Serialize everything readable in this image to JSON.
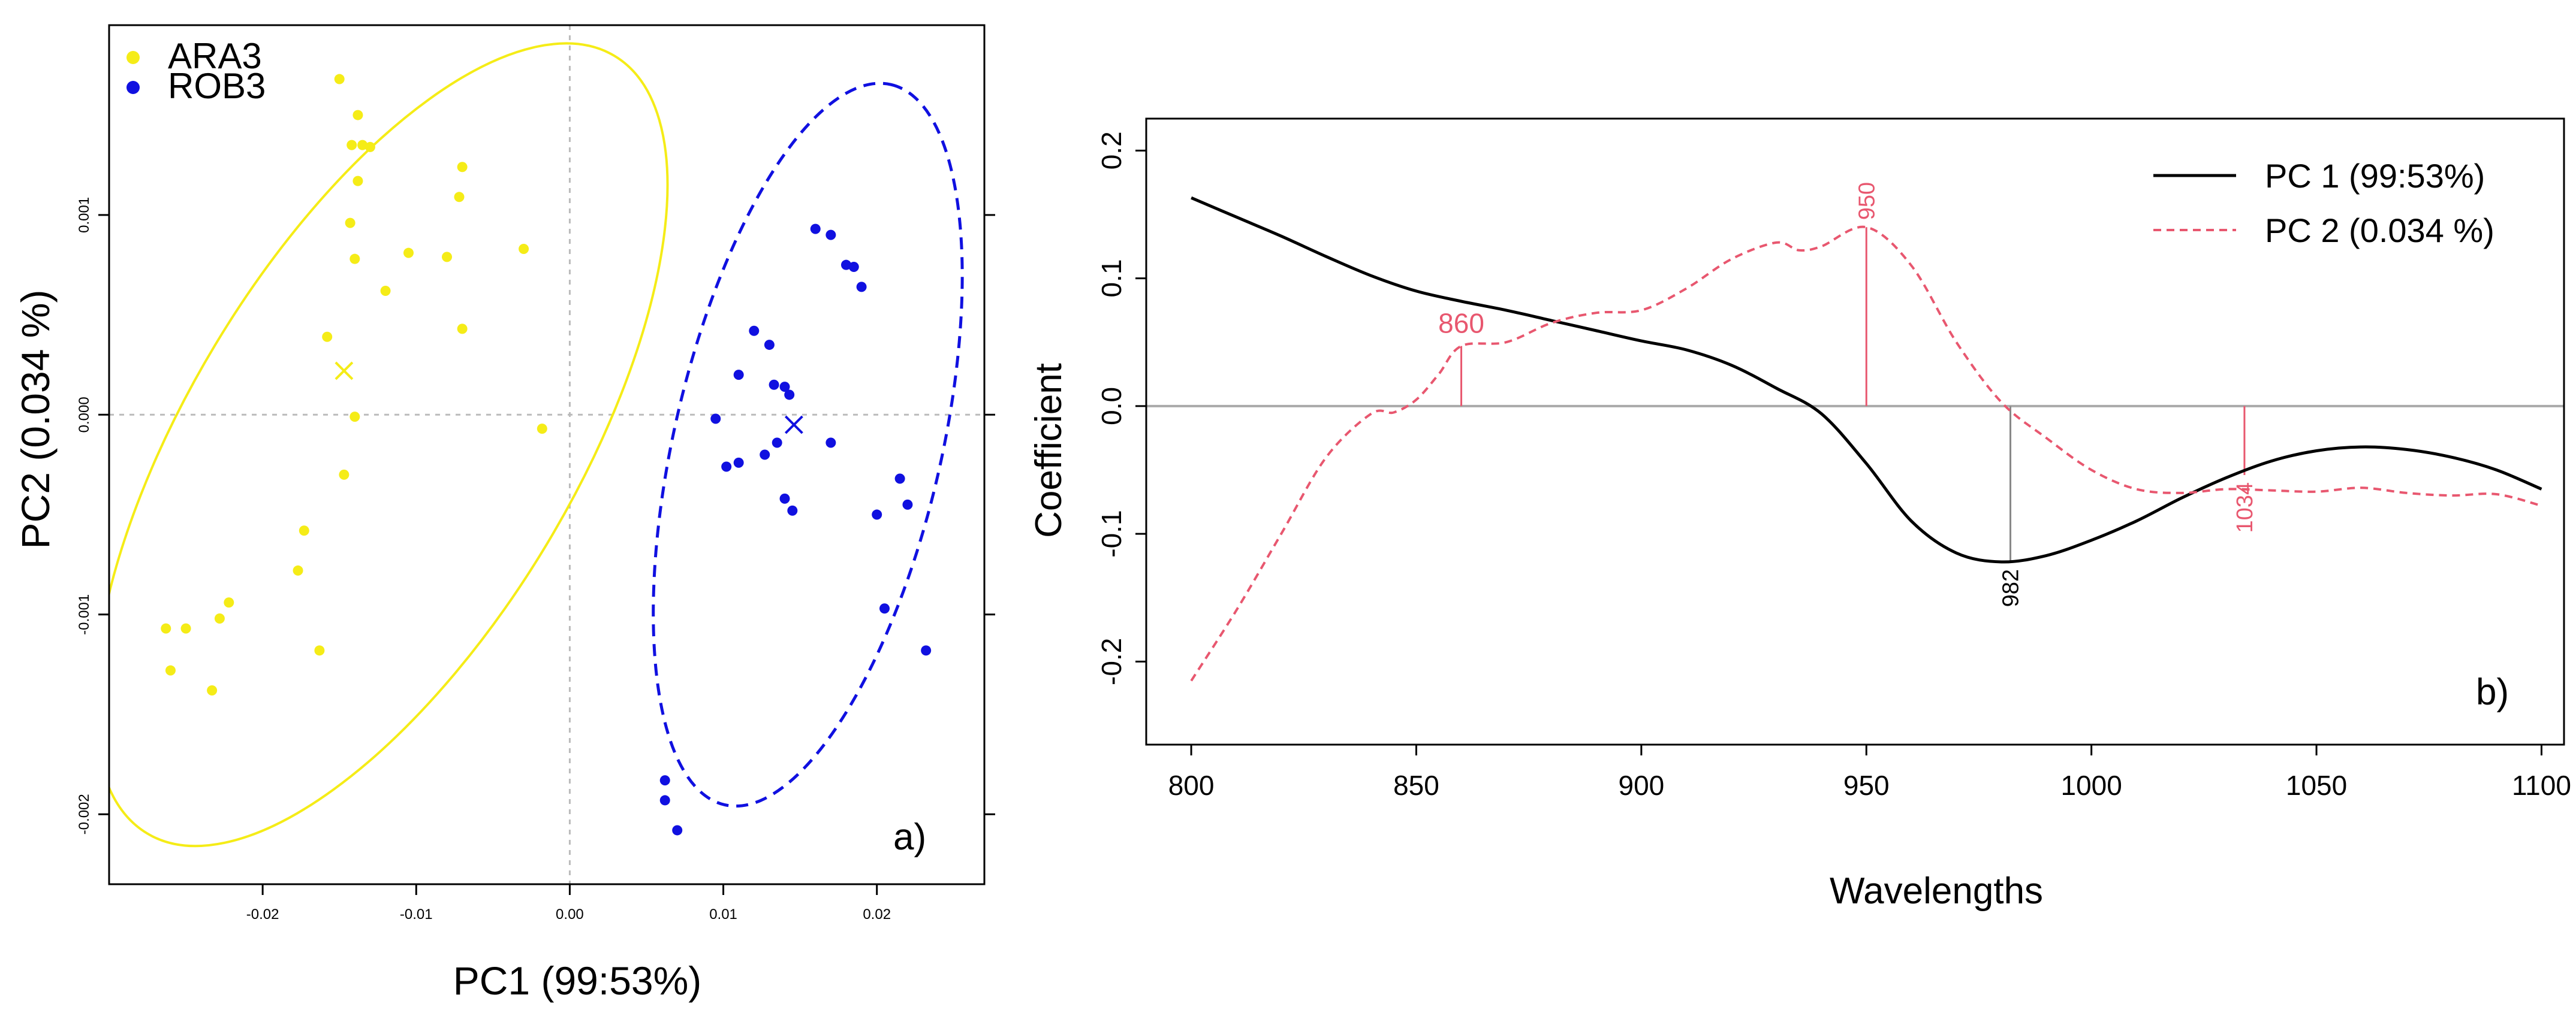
{
  "chart_data": [
    {
      "type": "scatter",
      "panel_label": "a)",
      "xlabel": "PC1 (99:53%)",
      "ylabel": "PC2 (0.034 %)",
      "xlim": [
        -0.03,
        0.027
      ],
      "ylim": [
        -0.00235,
        0.00195
      ],
      "xticks": [
        -0.02,
        -0.01,
        0.0,
        0.01,
        0.02
      ],
      "xtick_labels": [
        "-0.02",
        "-0.01",
        "0.00",
        "0.01",
        "0.02"
      ],
      "yticks": [
        -0.002,
        -0.001,
        0.0,
        0.001
      ],
      "ytick_labels": [
        "-0.002",
        "-0.001",
        "0.000",
        "0.001"
      ],
      "reference_lines": {
        "x": 0,
        "y": 0,
        "style": "dotted",
        "color": "#bbbbbb"
      },
      "legend": {
        "position": "top-left",
        "entries": [
          "ARA3",
          "ROB3"
        ]
      },
      "series": [
        {
          "name": "ARA3",
          "color": "#f5ec17",
          "centroid": [
            -0.0147,
            0.00022
          ],
          "ellipse": {
            "center": [
              -0.0123,
              -0.00015
            ],
            "radii_axis_units": [
              0.0126,
              0.00227
            ],
            "rotation_deg": -59,
            "style": "solid"
          },
          "x": [
            -0.015,
            -0.0138,
            -0.0135,
            -0.0142,
            -0.013,
            -0.007,
            -0.0138,
            -0.0143,
            -0.0072,
            -0.0105,
            -0.008,
            -0.003,
            -0.014,
            -0.012,
            -0.007,
            -0.0158,
            -0.014,
            -0.0018,
            -0.0147,
            -0.0173,
            -0.0177,
            -0.0222,
            -0.0263,
            -0.025,
            -0.0228,
            -0.0163,
            -0.026,
            -0.0233
          ],
          "y": [
            0.00168,
            0.0015,
            0.00135,
            0.00135,
            0.00134,
            0.00124,
            0.00117,
            0.00096,
            0.00109,
            0.00081,
            0.00079,
            0.00083,
            0.00078,
            0.00062,
            0.00043,
            0.00039,
            -1e-05,
            -7e-05,
            -0.0003,
            -0.00058,
            -0.00078,
            -0.00094,
            -0.00107,
            -0.00107,
            -0.00102,
            -0.00118,
            -0.00128,
            -0.00138
          ]
        },
        {
          "name": "ROB3",
          "color": "#1010e0",
          "centroid": [
            0.0146,
            -5e-05
          ],
          "ellipse": {
            "center": [
              0.0155,
              -0.00015
            ],
            "radii_axis_units": [
              0.0087,
              0.00185
            ],
            "rotation_deg": -77,
            "style": "dashed"
          },
          "x": [
            0.016,
            0.017,
            0.018,
            0.0185,
            0.019,
            0.012,
            0.013,
            0.011,
            0.0133,
            0.0143,
            0.014,
            0.0095,
            0.0135,
            0.017,
            0.0127,
            0.011,
            0.0102,
            0.0215,
            0.014,
            0.0145,
            0.022,
            0.02,
            0.0205,
            0.0232,
            0.0062,
            0.0062,
            0.007
          ],
          "y": [
            0.00093,
            0.0009,
            0.00075,
            0.00074,
            0.00064,
            0.00042,
            0.00035,
            0.0002,
            0.00015,
            0.0001,
            0.00014,
            -2e-05,
            -0.00014,
            -0.00014,
            -0.0002,
            -0.00024,
            -0.00026,
            -0.00032,
            -0.00042,
            -0.00048,
            -0.00045,
            -0.0005,
            -0.00097,
            -0.00118,
            -0.00183,
            -0.00193,
            -0.00208
          ]
        }
      ]
    },
    {
      "type": "line",
      "panel_label": "b)",
      "xlabel": "Wavelengths",
      "ylabel": "Coefficient",
      "xlim": [
        790,
        1105
      ],
      "ylim": [
        -0.265,
        0.225
      ],
      "xticks": [
        800,
        850,
        900,
        950,
        1000,
        1050,
        1100
      ],
      "yticks": [
        -0.2,
        -0.1,
        0.0,
        0.1,
        0.2
      ],
      "ytick_labels": [
        "-0.2",
        "-0.1",
        "0.0",
        "0.1",
        "0.2"
      ],
      "zero_line_color": "#aaaaaa",
      "legend": {
        "position": "top-right",
        "entries": [
          "PC 1 (99:53%)",
          "PC 2 (0.034 %)"
        ]
      },
      "series": [
        {
          "name": "PC 1 (99:53%)",
          "color": "#000000",
          "style": "solid",
          "x": [
            800,
            810,
            820,
            830,
            840,
            850,
            860,
            870,
            880,
            890,
            900,
            910,
            920,
            930,
            940,
            950,
            960,
            970,
            980,
            990,
            1000,
            1010,
            1020,
            1030,
            1040,
            1050,
            1060,
            1070,
            1080,
            1090,
            1100
          ],
          "y": [
            0.163,
            0.148,
            0.133,
            0.117,
            0.102,
            0.09,
            0.082,
            0.075,
            0.067,
            0.059,
            0.051,
            0.044,
            0.032,
            0.014,
            -0.006,
            -0.045,
            -0.09,
            -0.115,
            -0.122,
            -0.117,
            -0.105,
            -0.09,
            -0.072,
            -0.056,
            -0.043,
            -0.035,
            -0.032,
            -0.034,
            -0.04,
            -0.05,
            -0.065
          ]
        },
        {
          "name": "PC 2 (0.034 %)",
          "color": "#e8576f",
          "style": "dashed",
          "x": [
            800,
            810,
            820,
            830,
            840,
            845,
            850,
            855,
            860,
            870,
            880,
            890,
            900,
            910,
            920,
            930,
            935,
            940,
            950,
            960,
            970,
            980,
            990,
            1000,
            1010,
            1020,
            1030,
            1040,
            1050,
            1060,
            1070,
            1080,
            1090,
            1100
          ],
          "y": [
            -0.215,
            -0.16,
            -0.1,
            -0.04,
            -0.006,
            -0.005,
            0.005,
            0.025,
            0.047,
            0.05,
            0.065,
            0.073,
            0.075,
            0.092,
            0.115,
            0.128,
            0.122,
            0.125,
            0.14,
            0.11,
            0.05,
            0.003,
            -0.025,
            -0.05,
            -0.065,
            -0.068,
            -0.065,
            -0.066,
            -0.067,
            -0.064,
            -0.068,
            -0.07,
            -0.069,
            -0.078
          ]
        }
      ],
      "annotations": [
        {
          "label": "860",
          "x": 860,
          "y": 0.047,
          "series": "PC 2 (0.034 %)",
          "color": "#e8576f"
        },
        {
          "label": "950",
          "x": 950,
          "y": 0.14,
          "series": "PC 2 (0.034 %)",
          "color": "#e8576f"
        },
        {
          "label": "982",
          "x": 982,
          "y": -0.122,
          "series": "PC 1 (99:53%)",
          "color": "#000000"
        },
        {
          "label": "1034",
          "x": 1034,
          "y": -0.054,
          "series": "PC 2 (0.034 %)",
          "color": "#e8576f"
        }
      ]
    }
  ]
}
